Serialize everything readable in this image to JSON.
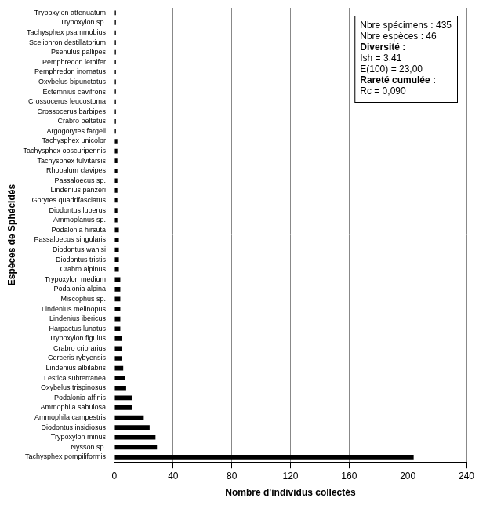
{
  "chart_data": {
    "type": "bar",
    "orientation": "horizontal",
    "x_label": "Nombre d'individus collectés",
    "y_label": "Espèces de Sphécidés",
    "categories": [
      "Trypoxylon attenuatum",
      "Trypoxylon sp.",
      "Tachysphex psammobius",
      "Sceliphron destillatorium",
      "Psenulus pallipes",
      "Pemphredon lethifer",
      "Pemphredon inornatus",
      "Oxybelus bipunctatus",
      "Ectemnius cavifrons",
      "Crossocerus leucostoma",
      "Crossocerus barbipes",
      "Crabro peltatus",
      "Argogorytes fargeii",
      "Tachysphex unicolor",
      "Tachysphex obscuripennis",
      "Tachysphex fulvitarsis",
      "Rhopalum clavipes",
      "Passaloecus sp.",
      "Lindenius panzeri",
      "Gorytes quadrifasciatus",
      "Diodontus luperus",
      "Ammoplanus sp.",
      "Podalonia hirsuta",
      "Passaloecus singularis",
      "Diodontus wahisi",
      "Diodontus tristis",
      "Crabro alpinus",
      "Trypoxylon medium",
      "Podalonia alpina",
      "Miscophus sp.",
      "Lindenius melinopus",
      "Lindenius ibericus",
      "Harpactus lunatus",
      "Trypoxylon figulus",
      "Crabro cribrarius",
      "Cerceris rybyensis",
      "Lindenius albilabris",
      "Lestica subterranea",
      "Oxybelus trispinosus",
      "Podalonia affinis",
      "Ammophila sabulosa",
      "Ammophila campestris",
      "Diodontus insidiosus",
      "Trypoxylon minus",
      "Nysson sp.",
      "Tachysphex pompiliformis"
    ],
    "values": [
      1,
      1,
      1,
      1,
      1,
      1,
      1,
      1,
      1,
      1,
      1,
      1,
      1,
      2,
      2,
      2,
      2,
      2,
      2,
      2,
      2,
      2,
      3,
      3,
      3,
      3,
      3,
      4,
      4,
      4,
      4,
      4,
      4,
      5,
      5,
      5,
      6,
      7,
      8,
      12,
      12,
      20,
      24,
      28,
      29,
      204
    ],
    "color": "#000000",
    "xlim": [
      0,
      240
    ],
    "xticks": [
      0,
      40,
      80,
      120,
      160,
      200,
      240
    ],
    "grid": true,
    "annotations": [
      "Nbre spécimens : 435",
      "Nbre espèces : 46",
      "Diversité :",
      "Ish = 3,41",
      "E(100) = 23,00",
      "Rareté cumulée :",
      "Rc = 0,090"
    ]
  }
}
